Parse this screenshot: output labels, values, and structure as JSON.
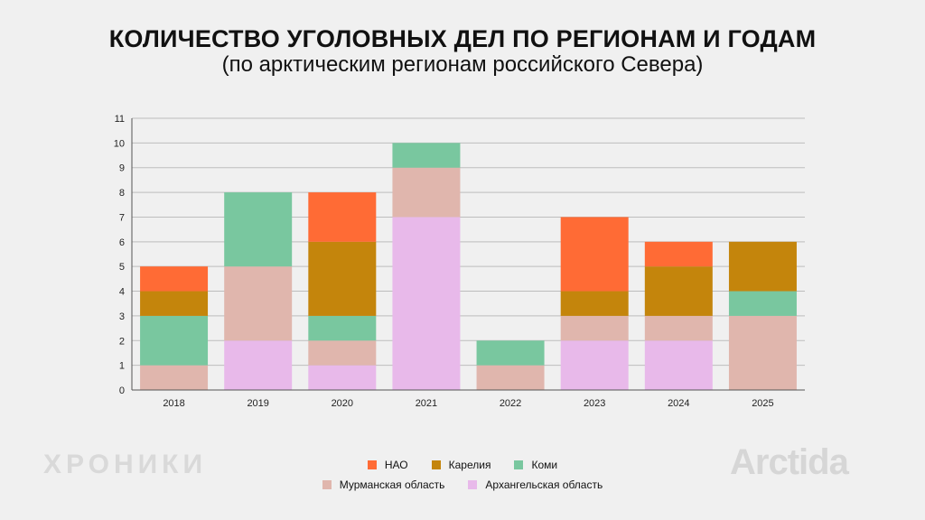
{
  "watermarks": {
    "left": "ХРОНИКИ",
    "right": "Arctida"
  },
  "chart_data": {
    "type": "bar",
    "stacked": true,
    "title": "КОЛИЧЕСТВО УГОЛОВНЫХ ДЕЛ ПО РЕГИОНАМ И ГОДАМ",
    "subtitle": "(по арктическим регионам российского Севера)",
    "xlabel": "",
    "ylabel": "",
    "ylim": [
      0,
      11
    ],
    "yticks": [
      0,
      1,
      2,
      3,
      4,
      5,
      6,
      7,
      8,
      9,
      10,
      11
    ],
    "grid": true,
    "legend_position": "bottom-center",
    "categories": [
      "2018",
      "2019",
      "2020",
      "2021",
      "2022",
      "2023",
      "2024",
      "2025"
    ],
    "series": [
      {
        "name": "Архангельская область",
        "color": "#e8b9ea",
        "values": [
          0,
          2,
          1,
          7,
          0,
          2,
          2,
          0
        ]
      },
      {
        "name": "Мурманская область",
        "color": "#e0b6ad",
        "values": [
          1,
          3,
          1,
          2,
          1,
          1,
          1,
          3
        ]
      },
      {
        "name": "Коми",
        "color": "#79c79f",
        "values": [
          2,
          3,
          1,
          1,
          1,
          0,
          0,
          1
        ]
      },
      {
        "name": "Карелия",
        "color": "#c4850c",
        "values": [
          1,
          0,
          3,
          0,
          0,
          1,
          2,
          2
        ]
      },
      {
        "name": "НАО",
        "color": "#ff6b35",
        "values": [
          1,
          0,
          2,
          0,
          0,
          3,
          1,
          0
        ]
      }
    ],
    "legend_rows": [
      [
        "НАО",
        "Карелия",
        "Коми"
      ],
      [
        "Мурманская область",
        "Архангельская область"
      ]
    ]
  }
}
